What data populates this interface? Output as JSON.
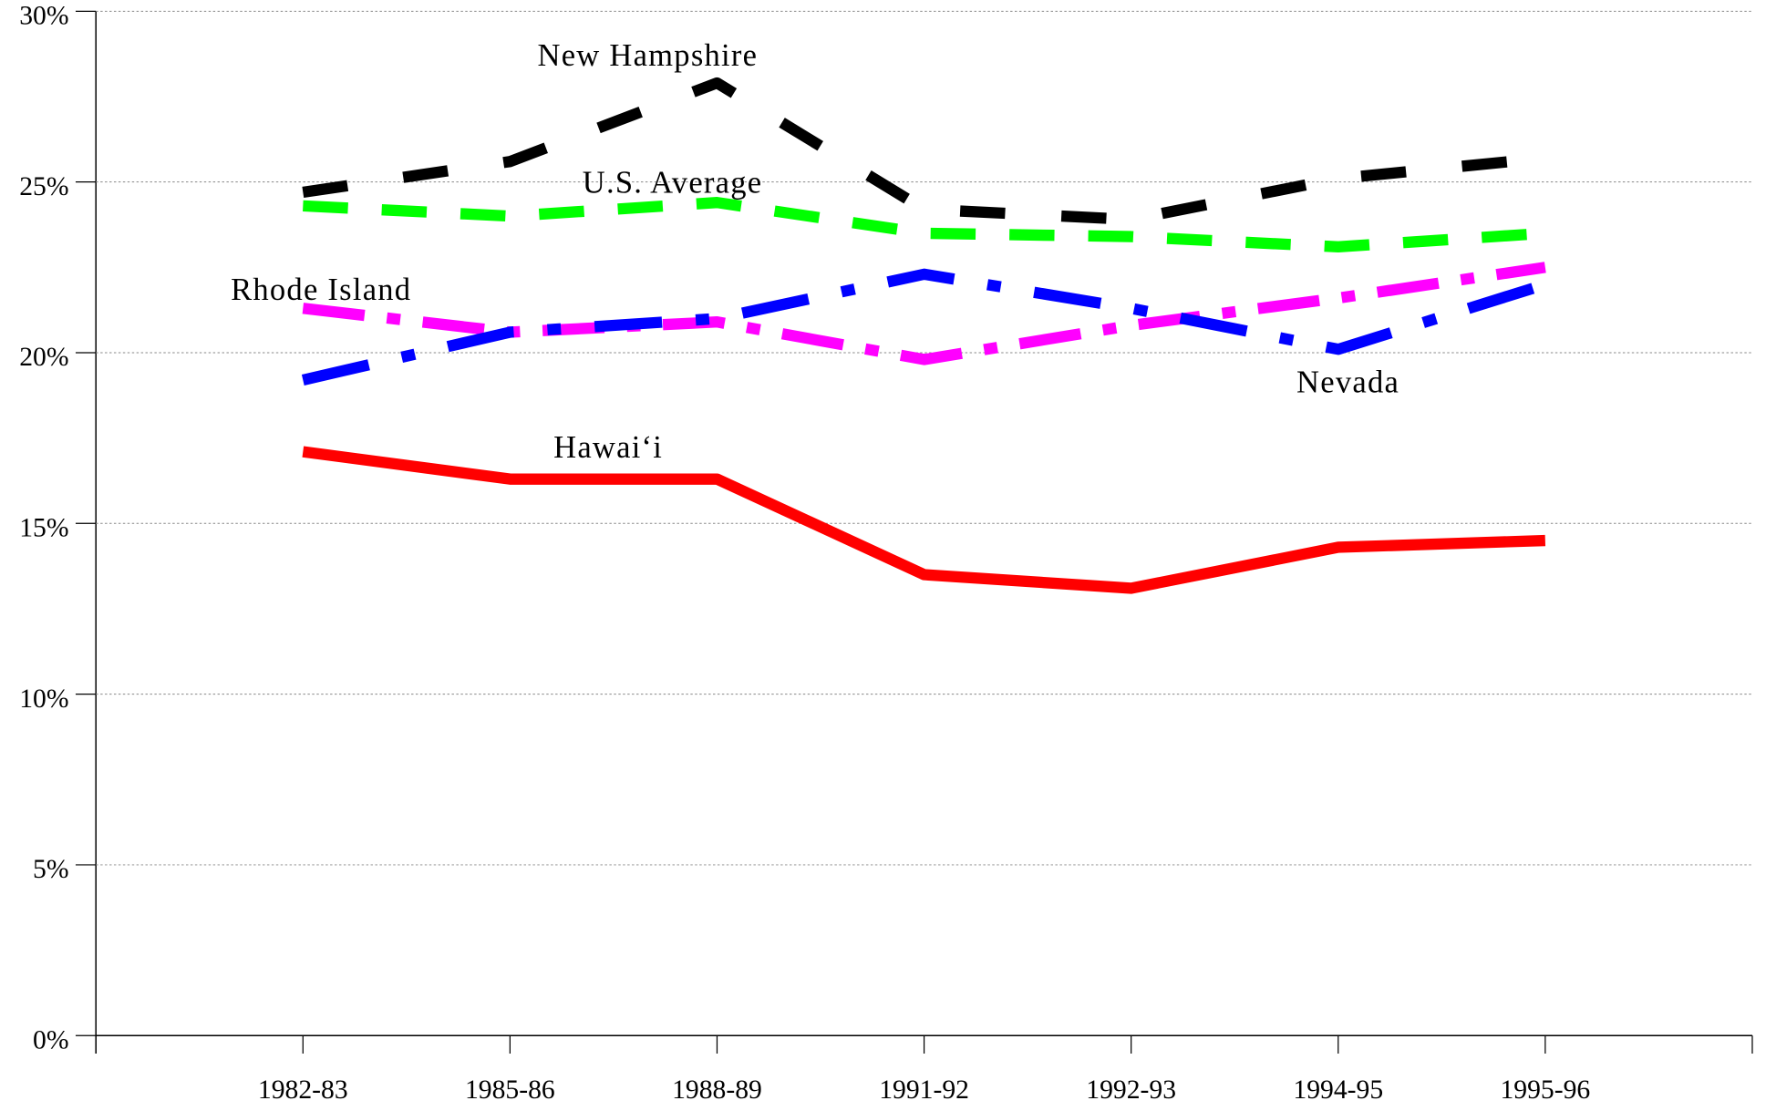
{
  "chart_data": {
    "type": "line",
    "categories": [
      "1982-83",
      "1985-86",
      "1988-89",
      "1991-92",
      "1992-93",
      "1994-95",
      "1995-96"
    ],
    "series": [
      {
        "name": "New Hampshire",
        "color": "#000000",
        "values": [
          24.7,
          25.6,
          27.9,
          24.2,
          23.9,
          25.1,
          25.7
        ]
      },
      {
        "name": "U.S. Average",
        "color": "#00ff00",
        "values": [
          24.3,
          24.0,
          24.4,
          23.5,
          23.4,
          23.1,
          23.5
        ]
      },
      {
        "name": "Rhode Island",
        "color": "#ff00ff",
        "values": [
          21.3,
          20.6,
          20.9,
          19.8,
          20.8,
          21.6,
          22.5
        ]
      },
      {
        "name": "Nevada",
        "color": "#0000ff",
        "values": [
          19.2,
          20.6,
          21.0,
          22.3,
          21.3,
          20.1,
          22.0
        ]
      },
      {
        "name": "Hawai‘i",
        "color": "#ff0000",
        "values": [
          17.1,
          16.3,
          16.3,
          13.5,
          13.1,
          14.3,
          14.5
        ]
      }
    ],
    "ylim": [
      0,
      30
    ],
    "yticks": [
      {
        "value": 0,
        "label": "0%"
      },
      {
        "value": 5,
        "label": "5%"
      },
      {
        "value": 10,
        "label": "10%"
      },
      {
        "value": 15,
        "label": "15%"
      },
      {
        "value": 20,
        "label": "20%"
      },
      {
        "value": 25,
        "label": "25%"
      },
      {
        "value": 30,
        "label": "30%"
      }
    ],
    "grid": true
  }
}
